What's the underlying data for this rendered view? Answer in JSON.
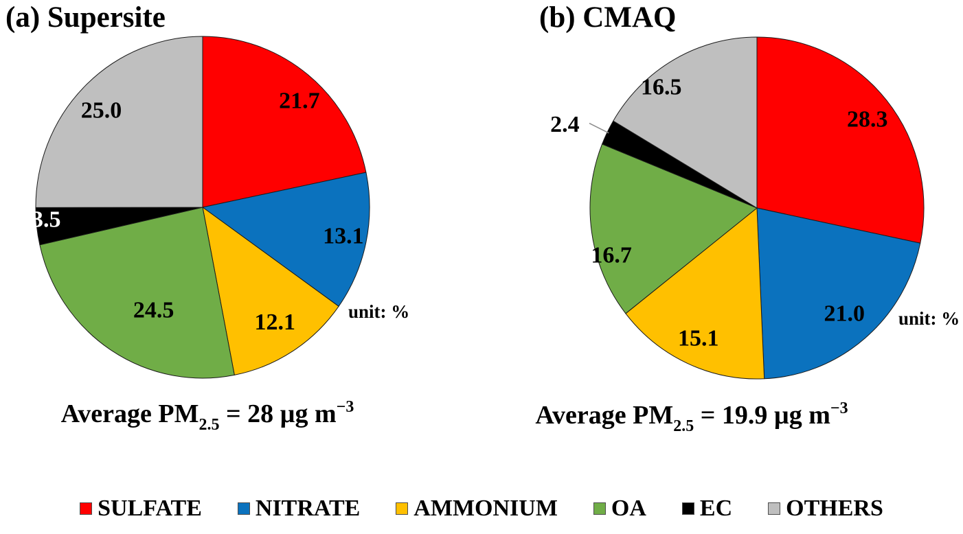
{
  "figure": {
    "panels": [
      {
        "label": "(a) Supersite",
        "unit_note": "unit: %",
        "average_prefix": "Average PM",
        "average_sub": "2.5",
        "average_mid": " = 28 µg m",
        "average_sup": "−3"
      },
      {
        "label": "(b) CMAQ",
        "unit_note": "unit: %",
        "average_prefix": "Average PM",
        "average_sub": "2.5",
        "average_mid": " = 19.9 µg m",
        "average_sup": "−3"
      }
    ]
  },
  "legend": {
    "items": [
      {
        "label": "SULFATE",
        "color": "#FF0000"
      },
      {
        "label": "NITRATE",
        "color": "#0B72BE"
      },
      {
        "label": "AMMONIUM",
        "color": "#FFC000"
      },
      {
        "label": "OA",
        "color": "#70AD47"
      },
      {
        "label": "EC",
        "color": "#000000"
      },
      {
        "label": "OTHERS",
        "color": "#BFBFBF"
      }
    ]
  },
  "chart_data": [
    {
      "type": "pie",
      "title": "(a) Supersite",
      "unit": "%",
      "average_pm25": 28,
      "average_units": "µg m−3",
      "categories": [
        "SULFATE",
        "NITRATE",
        "AMMONIUM",
        "OA",
        "EC",
        "OTHERS"
      ],
      "values": [
        21.7,
        13.1,
        12.1,
        24.5,
        3.5,
        25.0
      ],
      "labels": [
        "21.7",
        "13.1",
        "12.1",
        "24.5",
        "3.5",
        "25.0"
      ],
      "colors": [
        "#FF0000",
        "#0B72BE",
        "#FFC000",
        "#70AD47",
        "#000000",
        "#BFBFBF"
      ],
      "start_angle_deg": 0,
      "direction": "clockwise",
      "label_pos": [
        {
          "a": 43.0,
          "r": 0.85,
          "fill": "#000000"
        },
        {
          "a": 101.3,
          "r": 0.86,
          "fill": "#000000"
        },
        {
          "a": 147.2,
          "r": 0.8,
          "fill": "#000000"
        },
        {
          "a": 206.0,
          "r": 0.67,
          "fill": "#000000"
        },
        {
          "a": 265.6,
          "r": 0.94,
          "fill": "#ffffff"
        },
        {
          "a": 313.0,
          "r": 0.83,
          "fill": "#000000"
        }
      ]
    },
    {
      "type": "pie",
      "title": "(b) CMAQ",
      "unit": "%",
      "average_pm25": 19.9,
      "average_units": "µg m−3",
      "categories": [
        "SULFATE",
        "NITRATE",
        "AMMONIUM",
        "OA",
        "EC",
        "OTHERS"
      ],
      "values": [
        28.3,
        21.0,
        15.1,
        16.7,
        2.4,
        16.5
      ],
      "labels": [
        "28.3",
        "21.0",
        "15.1",
        "16.7",
        "2.4",
        "16.5"
      ],
      "colors": [
        "#FF0000",
        "#0B72BE",
        "#FFC000",
        "#70AD47",
        "#000000",
        "#BFBFBF"
      ],
      "start_angle_deg": 0,
      "direction": "clockwise",
      "label_pos": [
        {
          "a": 52.0,
          "r": 0.84,
          "fill": "#000000"
        },
        {
          "a": 139.7,
          "r": 0.81,
          "fill": "#000000"
        },
        {
          "a": 204.7,
          "r": 0.84,
          "fill": "#000000"
        },
        {
          "a": 252.4,
          "r": 0.915,
          "fill": "#000000"
        },
        {
          "a": 293.0,
          "r": 1.25,
          "fill": "#000000",
          "outside": true
        },
        {
          "a": 321.0,
          "r": 0.91,
          "fill": "#000000"
        }
      ]
    }
  ]
}
